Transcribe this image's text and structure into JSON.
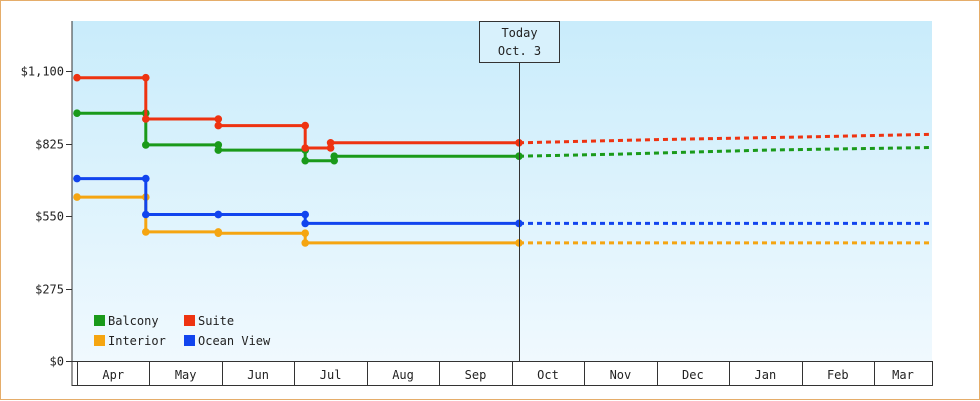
{
  "chart_data": {
    "type": "line",
    "step": true,
    "y_ticks": [
      "$0",
      "$275",
      "$550",
      "$825",
      "$1,100"
    ],
    "y_tick_values": [
      0,
      275,
      550,
      825,
      1100
    ],
    "ylim": [
      0,
      1290
    ],
    "x_ticks": [
      "Apr",
      "May",
      "Jun",
      "Jul",
      "Aug",
      "Sep",
      "Oct",
      "Nov",
      "Dec",
      "Jan",
      "Feb",
      "Mar"
    ],
    "x_domain_months": [
      0,
      11.8
    ],
    "today": {
      "line1": "Today",
      "line2": "Oct. 3",
      "month_pos": 6.1
    },
    "legend_position": "bottom-left",
    "series": [
      {
        "name": "Balcony",
        "color": "#1a9a1a",
        "points": [
          [
            0,
            940
          ],
          [
            0.95,
            940
          ],
          [
            0.95,
            820
          ],
          [
            1.95,
            820
          ],
          [
            1.95,
            800
          ],
          [
            3.15,
            800
          ],
          [
            3.15,
            760
          ],
          [
            3.55,
            760
          ],
          [
            3.55,
            777
          ],
          [
            6.1,
            777
          ]
        ],
        "forecast": [
          [
            6.1,
            777
          ],
          [
            7.5,
            785
          ],
          [
            9.5,
            800
          ],
          [
            11.8,
            810
          ]
        ]
      },
      {
        "name": "Suite",
        "color": "#ee3311",
        "points": [
          [
            0,
            1075
          ],
          [
            0.95,
            1075
          ],
          [
            0.95,
            918
          ],
          [
            1.95,
            918
          ],
          [
            1.95,
            893
          ],
          [
            3.15,
            893
          ],
          [
            3.15,
            808
          ],
          [
            3.5,
            808
          ],
          [
            3.5,
            828
          ],
          [
            6.1,
            828
          ]
        ],
        "forecast": [
          [
            6.1,
            828
          ],
          [
            8,
            840
          ],
          [
            10,
            850
          ],
          [
            11.8,
            860
          ]
        ]
      },
      {
        "name": "Interior",
        "color": "#f5a511",
        "points": [
          [
            0,
            622
          ],
          [
            0.95,
            622
          ],
          [
            0.95,
            490
          ],
          [
            1.95,
            490
          ],
          [
            1.95,
            485
          ],
          [
            3.15,
            485
          ],
          [
            3.15,
            448
          ],
          [
            6.1,
            448
          ]
        ],
        "forecast": [
          [
            6.1,
            448
          ],
          [
            11.8,
            448
          ]
        ]
      },
      {
        "name": "Ocean View",
        "color": "#1144ee",
        "points": [
          [
            0,
            692
          ],
          [
            0.95,
            692
          ],
          [
            0.95,
            556
          ],
          [
            1.95,
            556
          ],
          [
            1.95,
            556
          ],
          [
            3.15,
            556
          ],
          [
            3.15,
            522
          ],
          [
            6.1,
            522
          ]
        ],
        "forecast": [
          [
            6.1,
            522
          ],
          [
            11.8,
            522
          ]
        ]
      }
    ]
  }
}
